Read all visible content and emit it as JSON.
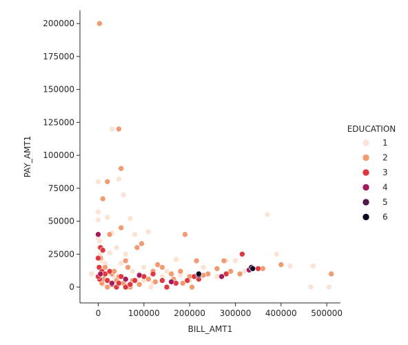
{
  "chart_data": {
    "type": "scatter",
    "xlabel": "BILL_AMT1",
    "ylabel": "PAY_AMT1",
    "xlim": [
      -40000,
      530000
    ],
    "ylim": [
      -12000,
      210000
    ],
    "xticks": [
      0,
      100000,
      200000,
      300000,
      400000,
      500000
    ],
    "yticks": [
      0,
      25000,
      50000,
      75000,
      100000,
      125000,
      150000,
      175000,
      200000
    ],
    "legend": {
      "title": "EDUCATION",
      "placement": "right",
      "entries": [
        "1",
        "2",
        "3",
        "4",
        "5",
        "6"
      ]
    },
    "colors": {
      "1": "#FBE4D3",
      "2": "#F19B73",
      "3": "#E0383F",
      "4": "#A31B5A",
      "5": "#4D1A4A",
      "6": "#0C0820"
    },
    "series": [
      {
        "name": "1",
        "points": [
          [
            -15000,
            10000
          ],
          [
            0,
            80000
          ],
          [
            0,
            57000
          ],
          [
            0,
            51000
          ],
          [
            0,
            40000
          ],
          [
            0,
            37000
          ],
          [
            3000,
            35000
          ],
          [
            2000,
            30000
          ],
          [
            5000,
            25000
          ],
          [
            8000,
            20000
          ],
          [
            10000,
            15000
          ],
          [
            12000,
            8000
          ],
          [
            5000,
            5000
          ],
          [
            15000,
            3000
          ],
          [
            20000,
            10000
          ],
          [
            25000,
            2000
          ],
          [
            30000,
            120000
          ],
          [
            45000,
            82000
          ],
          [
            55000,
            70000
          ],
          [
            20000,
            53000
          ],
          [
            70000,
            52000
          ],
          [
            30000,
            41000
          ],
          [
            80000,
            40000
          ],
          [
            110000,
            42000
          ],
          [
            40000,
            30000
          ],
          [
            60000,
            25000
          ],
          [
            90000,
            10000
          ],
          [
            100000,
            5000
          ],
          [
            120000,
            3000
          ],
          [
            150000,
            12000
          ],
          [
            170000,
            21000
          ],
          [
            200000,
            5000
          ],
          [
            230000,
            15000
          ],
          [
            260000,
            8000
          ],
          [
            280000,
            20000
          ],
          [
            300000,
            20000
          ],
          [
            320000,
            12000
          ],
          [
            370000,
            55000
          ],
          [
            390000,
            25000
          ],
          [
            420000,
            16000
          ],
          [
            470000,
            16000
          ],
          [
            465000,
            0
          ],
          [
            505000,
            0
          ],
          [
            100000,
            15000
          ],
          [
            140000,
            8000
          ],
          [
            60000,
            2000
          ],
          [
            75000,
            12000
          ],
          [
            10000,
            2000
          ],
          [
            35000,
            8000
          ],
          [
            50000,
            18000
          ],
          [
            85000,
            6000
          ],
          [
            115000,
            0
          ],
          [
            180000,
            9000
          ],
          [
            330000,
            13000
          ],
          [
            15000,
            18000
          ],
          [
            25000,
            26000
          ]
        ]
      },
      {
        "name": "2",
        "points": [
          [
            3000,
            200000
          ],
          [
            45000,
            120000
          ],
          [
            50000,
            90000
          ],
          [
            20000,
            80000
          ],
          [
            10000,
            67000
          ],
          [
            50000,
            45000
          ],
          [
            25000,
            40000
          ],
          [
            95000,
            33000
          ],
          [
            190000,
            40000
          ],
          [
            85000,
            30000
          ],
          [
            60000,
            20000
          ],
          [
            15000,
            15000
          ],
          [
            30000,
            10000
          ],
          [
            40000,
            5000
          ],
          [
            55000,
            3000
          ],
          [
            70000,
            0
          ],
          [
            100000,
            8000
          ],
          [
            120000,
            12000
          ],
          [
            130000,
            17000
          ],
          [
            140000,
            15000
          ],
          [
            160000,
            10000
          ],
          [
            180000,
            12000
          ],
          [
            200000,
            8000
          ],
          [
            215000,
            20000
          ],
          [
            240000,
            10000
          ],
          [
            260000,
            14000
          ],
          [
            275000,
            20000
          ],
          [
            290000,
            12000
          ],
          [
            310000,
            10000
          ],
          [
            360000,
            14000
          ],
          [
            400000,
            17000
          ],
          [
            510000,
            10000
          ],
          [
            5000,
            22000
          ],
          [
            8000,
            3000
          ],
          [
            12000,
            6000
          ],
          [
            20000,
            0
          ],
          [
            35000,
            12000
          ],
          [
            45000,
            8000
          ],
          [
            65000,
            15000
          ],
          [
            75000,
            5000
          ],
          [
            90000,
            2000
          ],
          [
            110000,
            6000
          ],
          [
            125000,
            4000
          ],
          [
            150000,
            0
          ],
          [
            165000,
            6000
          ],
          [
            185000,
            3000
          ],
          [
            205000,
            0
          ],
          [
            230000,
            9000
          ]
        ]
      },
      {
        "name": "3",
        "points": [
          [
            0,
            22000
          ],
          [
            5000,
            30000
          ],
          [
            10000,
            28000
          ],
          [
            2000,
            15000
          ],
          [
            8000,
            12000
          ],
          [
            15000,
            10000
          ],
          [
            3000,
            6000
          ],
          [
            20000,
            5000
          ],
          [
            30000,
            2000
          ],
          [
            40000,
            0
          ],
          [
            50000,
            8000
          ],
          [
            60000,
            0
          ],
          [
            80000,
            5000
          ],
          [
            100000,
            8000
          ],
          [
            120000,
            10000
          ],
          [
            140000,
            5000
          ],
          [
            150000,
            0
          ],
          [
            170000,
            3000
          ],
          [
            195000,
            5000
          ],
          [
            210000,
            8000
          ],
          [
            220000,
            6000
          ],
          [
            280000,
            10000
          ],
          [
            315000,
            25000
          ],
          [
            350000,
            14000
          ],
          [
            25000,
            12000
          ],
          [
            45000,
            3000
          ],
          [
            70000,
            2000
          ],
          [
            0,
            8000
          ]
        ]
      },
      {
        "name": "4",
        "points": [
          [
            5000,
            10000
          ],
          [
            30000,
            3000
          ],
          [
            90000,
            9000
          ],
          [
            160000,
            4000
          ],
          [
            270000,
            8000
          ],
          [
            330000,
            13000
          ],
          [
            0,
            40000
          ],
          [
            60000,
            6000
          ]
        ]
      },
      {
        "name": "5",
        "points": [
          [
            220000,
            9000
          ],
          [
            335000,
            15000
          ]
        ]
      },
      {
        "name": "6",
        "points": [
          [
            220000,
            10000
          ],
          [
            338000,
            14000
          ]
        ]
      }
    ]
  }
}
